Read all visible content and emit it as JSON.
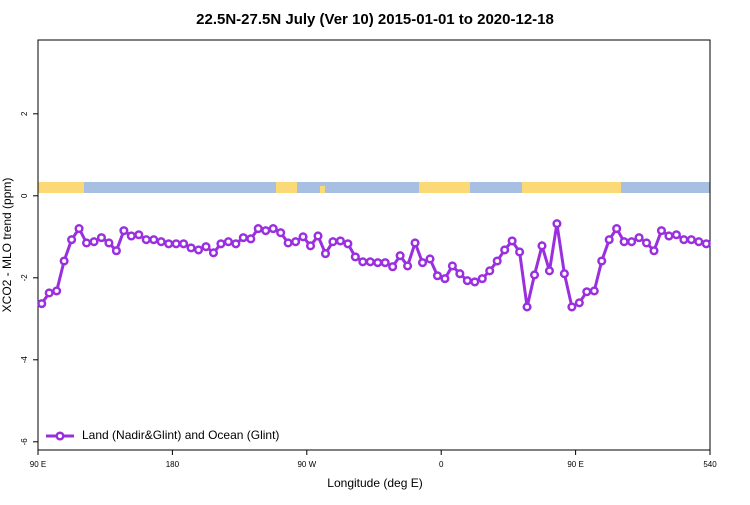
{
  "chart_data": {
    "type": "line",
    "title": "22.5N-27.5N July (Ver 10)   2015-01-01 to 2020-12-18",
    "x_label": "Longitude (deg E)",
    "y_label": "XCO2 - MLO trend (ppm)",
    "xlim": [
      90,
      540
    ],
    "xticks": [
      {
        "value": 90,
        "label": "90 E"
      },
      180,
      {
        "value": 270,
        "label": "90 W"
      },
      {
        "value": 360,
        "label": "0"
      },
      {
        "value": 450,
        "label": "90 E"
      },
      540
    ],
    "ylim": [
      -6.2,
      3.8
    ],
    "yticks": [
      -6,
      -4,
      -2,
      0,
      2
    ],
    "grid": false,
    "legend": "bottom-left",
    "series": [
      {
        "name": "Land (Nadir&Glint) and Ocean (Glint)",
        "color": "#9a2fe0",
        "x": [
          92.5,
          97.5,
          102.5,
          107.5,
          112.5,
          117.5,
          122.5,
          127.5,
          132.5,
          137.5,
          142.5,
          147.5,
          152.5,
          157.5,
          162.5,
          167.5,
          172.5,
          177.5,
          182.5,
          187.5,
          192.5,
          197.5,
          202.5,
          207.5,
          212.5,
          217.5,
          222.5,
          227.5,
          232.5,
          237.5,
          242.5,
          247.5,
          252.5,
          257.5,
          262.5,
          267.5,
          272.5,
          277.5,
          282.5,
          287.5,
          292.5,
          297.5,
          302.5,
          307.5,
          312.5,
          317.5,
          322.5,
          327.5,
          332.5,
          337.5,
          342.5,
          347.5,
          352.5,
          357.5,
          362.5,
          367.5,
          372.5,
          377.5,
          382.5,
          387.5,
          392.5,
          397.5,
          402.5,
          407.5,
          412.5,
          417.5,
          422.5,
          427.5,
          432.5,
          437.5,
          442.5,
          447.5,
          452.5,
          457.5,
          462.5,
          467.5,
          472.5,
          477.5,
          482.5,
          487.5,
          492.5,
          497.5,
          502.5,
          507.5,
          512.5,
          517.5,
          522.5,
          527.5,
          532.5,
          537.5
        ],
        "values": [
          -2.63,
          -2.37,
          -2.32,
          -1.59,
          -1.07,
          -0.8,
          -1.15,
          -1.12,
          -1.02,
          -1.15,
          -1.34,
          -0.85,
          -0.98,
          -0.95,
          -1.07,
          -1.07,
          -1.12,
          -1.17,
          -1.17,
          -1.17,
          -1.27,
          -1.32,
          -1.24,
          -1.39,
          -1.17,
          -1.12,
          -1.17,
          -1.02,
          -1.05,
          -0.8,
          -0.85,
          -0.8,
          -0.9,
          -1.15,
          -1.12,
          -1.0,
          -1.22,
          -0.98,
          -1.41,
          -1.12,
          -1.1,
          -1.17,
          -1.49,
          -1.61,
          -1.61,
          -1.63,
          -1.63,
          -1.73,
          -1.46,
          -1.71,
          -1.15,
          -1.63,
          -1.54,
          -1.95,
          -2.02,
          -1.71,
          -1.9,
          -2.07,
          -2.1,
          -2.02,
          -1.83,
          -1.59,
          -1.32,
          -1.1,
          -1.37,
          -2.71,
          -1.93,
          -1.22,
          -1.83,
          -0.68,
          -1.9,
          -2.71,
          -2.61,
          -2.34,
          -2.32,
          -1.59,
          -1.07,
          -0.8,
          -1.12,
          -1.12,
          -1.02,
          -1.15,
          -1.34,
          -0.85,
          -0.98,
          -0.95,
          -1.07,
          -1.07,
          -1.12,
          -1.17
        ]
      }
    ]
  }
}
